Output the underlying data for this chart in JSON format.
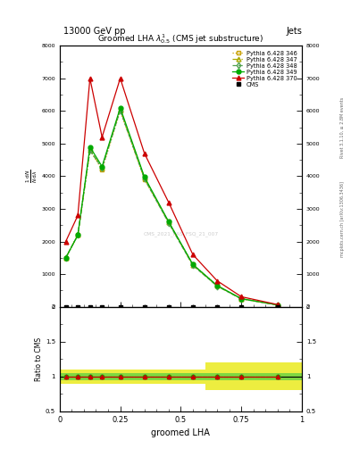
{
  "title_top": "13000 GeV pp",
  "title_right": "Jets",
  "plot_title": "Groomed LHA $\\lambda^{1}_{0.5}$ (CMS jet substructure)",
  "xlabel": "groomed LHA",
  "ylabel_ratio": "Ratio to CMS",
  "watermark": "CMS_2021_PAS_FSQ_21_007",
  "right_label1": "Rivet 3.1.10, ≥ 2.8M events",
  "right_label2": "mcplots.cern.ch [arXiv:1306.3436]",
  "x_edges": [
    0.0,
    0.05,
    0.1,
    0.15,
    0.2,
    0.3,
    0.4,
    0.5,
    0.6,
    0.7,
    0.8,
    1.0
  ],
  "x_centers": [
    0.025,
    0.075,
    0.125,
    0.175,
    0.25,
    0.35,
    0.45,
    0.55,
    0.65,
    0.75,
    0.9
  ],
  "cms_y": [
    0.0,
    0.0,
    0.0,
    0.0,
    0.0,
    0.0,
    0.0,
    0.0,
    0.0,
    0.0,
    0.0
  ],
  "cms_yerr": [
    0.0,
    0.0,
    0.0,
    0.0,
    0.0,
    0.0,
    0.0,
    0.0,
    0.0,
    0.0,
    0.0
  ],
  "py346_y": [
    1500,
    2200,
    4800,
    4200,
    6000,
    3900,
    2600,
    1300,
    650,
    250,
    60
  ],
  "py347_y": [
    1500,
    2200,
    4800,
    4250,
    6050,
    3950,
    2580,
    1280,
    640,
    245,
    58
  ],
  "py348_y": [
    1500,
    2200,
    4800,
    4250,
    6020,
    3920,
    2570,
    1270,
    635,
    243,
    57
  ],
  "py349_y": [
    1500,
    2200,
    4900,
    4300,
    6100,
    3980,
    2610,
    1300,
    655,
    252,
    60
  ],
  "py370_y": [
    2000,
    2800,
    7000,
    5200,
    7000,
    4700,
    3200,
    1600,
    800,
    310,
    70
  ],
  "ylim_main": [
    0,
    8000
  ],
  "ylim_ratio": [
    0.5,
    2.0
  ],
  "xlim": [
    0,
    1.0
  ],
  "cms_color": "#000000",
  "py346_color": "#c8a000",
  "py347_color": "#a8a800",
  "py348_color": "#50a050",
  "py349_color": "#00aa00",
  "py370_color": "#cc0000",
  "yticks": [
    0,
    1000,
    2000,
    3000,
    4000,
    5000,
    6000,
    7000,
    8000
  ],
  "ytick_labels": [
    "0",
    "1000",
    "2000",
    "3000",
    "4000",
    "5000",
    "6000",
    "7000",
    "8000"
  ],
  "band_yellow_low_vals": [
    0.9,
    0.9,
    0.9,
    0.9,
    0.9,
    0.9,
    0.9,
    0.9,
    0.8,
    0.8,
    0.8
  ],
  "band_yellow_high_vals": [
    1.1,
    1.1,
    1.1,
    1.1,
    1.1,
    1.1,
    1.1,
    1.1,
    1.2,
    1.2,
    1.2
  ],
  "band_green_low": 0.95,
  "band_green_high": 1.05,
  "ratio_py346": [
    1.0,
    1.0,
    1.0,
    1.0,
    1.0,
    1.0,
    1.0,
    1.0,
    1.0,
    1.0,
    1.0
  ],
  "ratio_py347": [
    1.0,
    1.0,
    1.0,
    1.0,
    1.0,
    1.0,
    1.0,
    1.0,
    1.0,
    1.0,
    1.0
  ],
  "ratio_py348": [
    1.0,
    1.0,
    1.0,
    1.0,
    1.0,
    1.0,
    1.0,
    1.0,
    1.0,
    1.0,
    1.0
  ],
  "ratio_py349": [
    1.0,
    1.0,
    1.0,
    1.0,
    1.0,
    1.0,
    1.0,
    1.0,
    1.0,
    1.0,
    1.0
  ],
  "ratio_py370": [
    1.0,
    1.0,
    1.0,
    1.0,
    1.0,
    1.0,
    1.0,
    1.0,
    1.0,
    1.0,
    1.0
  ]
}
